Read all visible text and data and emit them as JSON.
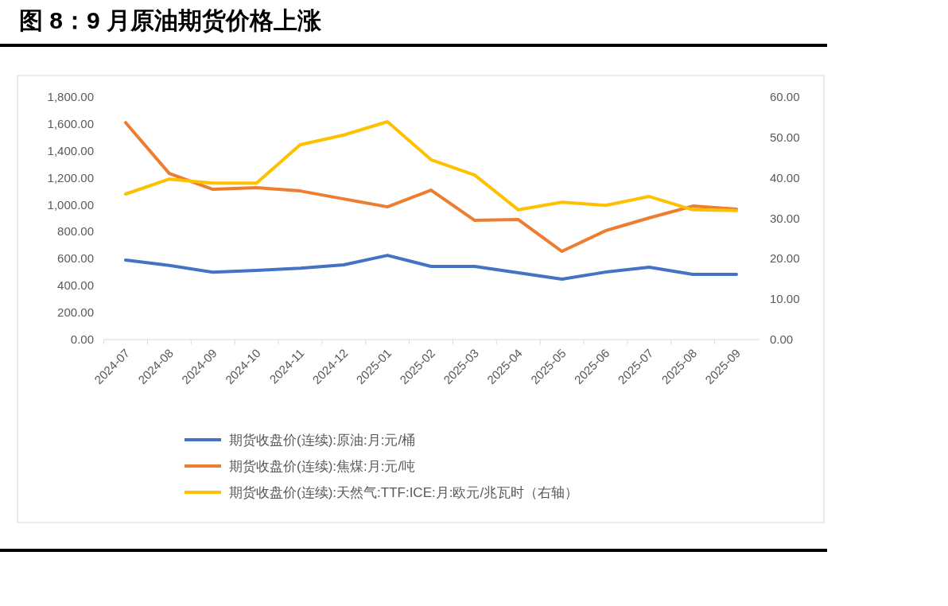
{
  "chart_data": {
    "type": "line",
    "title": "图 8：9 月原油期货价格上涨",
    "categories": [
      "2024-07",
      "2024-08",
      "2024-09",
      "2024-10",
      "2024-11",
      "2024-12",
      "2025-01",
      "2025-02",
      "2025-03",
      "2025-04",
      "2025-05",
      "2025-06",
      "2025-07",
      "2025-08",
      "2025-09"
    ],
    "series": [
      {
        "name": "期货收盘价(连续):原油:月:元/桶",
        "color": "#4472c4",
        "values": [
          590,
          550,
          500,
          513,
          530,
          555,
          625,
          543,
          543,
          496,
          448,
          501,
          537,
          484,
          484
        ]
      },
      {
        "name": "期货收盘价(连续):焦煤:月:元/吨",
        "color": "#ed7d31",
        "values": [
          1610,
          1233,
          1115,
          1127,
          1103,
          1044,
          985,
          1109,
          885,
          891,
          655,
          808,
          903,
          991,
          968
        ]
      },
      {
        "name": "期货收盘价(连续):天然气:TTF:ICE:月:欧元/兆瓦时（右轴）",
        "color": "#ffc000",
        "axis": "y2",
        "values": [
          36.0,
          39.7,
          38.7,
          38.7,
          48.2,
          50.6,
          53.9,
          44.5,
          40.7,
          32.1,
          34.0,
          33.2,
          35.4,
          32.1,
          31.9
        ]
      }
    ],
    "ylim": [
      0,
      1800
    ],
    "yticks": [
      {
        "value": 0,
        "label": "0.00"
      },
      {
        "value": 200,
        "label": "200.00"
      },
      {
        "value": 400,
        "label": "400.00"
      },
      {
        "value": 600,
        "label": "600.00"
      },
      {
        "value": 800,
        "label": "800.00"
      },
      {
        "value": 1000,
        "label": "1,000.00"
      },
      {
        "value": 1200,
        "label": "1,200.00"
      },
      {
        "value": 1400,
        "label": "1,400.00"
      },
      {
        "value": 1600,
        "label": "1,600.00"
      },
      {
        "value": 1800,
        "label": "1,800.00"
      }
    ],
    "y2lim": [
      0,
      60
    ],
    "y2ticks": [
      {
        "value": 0,
        "label": "0.00"
      },
      {
        "value": 10,
        "label": "10.00"
      },
      {
        "value": 20,
        "label": "20.00"
      },
      {
        "value": 30,
        "label": "30.00"
      },
      {
        "value": 40,
        "label": "40.00"
      },
      {
        "value": 50,
        "label": "50.00"
      },
      {
        "value": 60,
        "label": "60.00"
      }
    ],
    "legend": "bottom",
    "marker": "none",
    "line_style": "solid"
  }
}
